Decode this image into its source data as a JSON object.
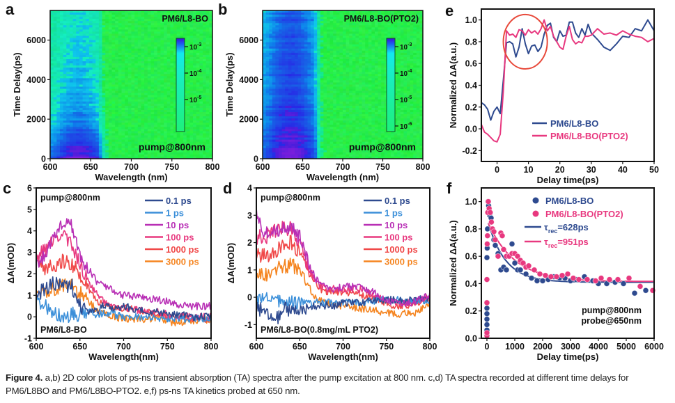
{
  "caption": {
    "label": "Figure 4.",
    "text": " a,b) 2D color plots of ps-ns transient absorption (TA) spectra after the pump excitation at 800 nm. c,d) TA spectra recorded at different time delays for PM6/L8BO and PM6/L8BO-PTO2. e,f) ps-ns TA kinetics probed at 650 nm."
  },
  "colors": {
    "blue": "#2e4a8f",
    "light_blue": "#3b8fd9",
    "purple": "#b82fb5",
    "pink": "#e8387f",
    "red": "#f04848",
    "orange": "#f5841f",
    "circle": "#e8493a"
  },
  "chart_data": [
    {
      "panel": "a",
      "type": "heatmap",
      "title": "PM6/L8-BO",
      "annotation": "pump@800nm",
      "xlabel": "Wavelength (nm)",
      "ylabel": "Time Delay(ps)",
      "xlim": [
        600,
        800
      ],
      "ylim": [
        0,
        7500
      ],
      "xticks": [
        "600",
        "650",
        "700",
        "750",
        "800"
      ],
      "yticks": [
        "0",
        "2000",
        "4000",
        "6000"
      ],
      "colorbar": {
        "ticks": [
          "10^-3",
          "10^-4",
          "10^-5"
        ]
      },
      "signal_region_nm": [
        600,
        660
      ]
    },
    {
      "panel": "b",
      "type": "heatmap",
      "title": "PM6/L8-BO(PTO2)",
      "annotation": "pump@800nm",
      "xlabel": "Wavelength (nm)",
      "ylabel": "Time Delay(ps)",
      "xlim": [
        600,
        800
      ],
      "ylim": [
        0,
        7500
      ],
      "xticks": [
        "600",
        "650",
        "700",
        "750",
        "800"
      ],
      "yticks": [
        "0",
        "2000",
        "4000",
        "6000"
      ],
      "colorbar": {
        "ticks": [
          "10^-3",
          "10^-4",
          "10^-5",
          "10^-6"
        ]
      },
      "signal_region_nm": [
        600,
        665
      ]
    },
    {
      "panel": "c",
      "type": "line",
      "annotation_top": "pump@800nm",
      "annotation_bottom": "PM6/L8-BO",
      "xlabel": "Wavelength(nm)",
      "ylabel": "ΔA(mOD)",
      "xlim": [
        600,
        800
      ],
      "ylim": [
        -1,
        6
      ],
      "xticks": [
        "600",
        "650",
        "700",
        "750",
        "800"
      ],
      "yticks": [
        "-1",
        "0",
        "1",
        "2",
        "3",
        "4",
        "5",
        "6"
      ],
      "x": [
        600,
        610,
        620,
        630,
        640,
        650,
        660,
        670,
        680,
        690,
        700,
        720,
        740,
        760,
        780,
        800
      ],
      "series": [
        {
          "name": "0.1 ps",
          "color": "blue",
          "values": [
            1.0,
            1.3,
            1.6,
            1.4,
            1.5,
            0.5,
            0.2,
            0.3,
            0.6,
            0.4,
            0.5,
            0.3,
            0.2,
            0.1,
            0.0,
            0.0
          ]
        },
        {
          "name": "1 ps",
          "color": "light_blue",
          "values": [
            0.8,
            0.5,
            0.2,
            0.0,
            0.1,
            0.1,
            0.2,
            0.1,
            0.2,
            0.1,
            0.0,
            0.0,
            -0.1,
            -0.1,
            -0.1,
            -0.1
          ]
        },
        {
          "name": "10 ps",
          "color": "purple",
          "values": [
            2.4,
            2.8,
            3.8,
            4.4,
            4.3,
            2.8,
            2.2,
            1.6,
            1.4,
            1.2,
            1.0,
            0.9,
            0.8,
            0.6,
            0.5,
            0.5
          ]
        },
        {
          "name": "100 ps",
          "color": "pink",
          "values": [
            2.8,
            3.1,
            3.6,
            3.8,
            3.5,
            2.4,
            1.6,
            1.0,
            0.7,
            0.5,
            0.4,
            0.3,
            0.2,
            0.0,
            0.0,
            0.0
          ]
        },
        {
          "name": "1000 ps",
          "color": "red",
          "values": [
            2.8,
            2.3,
            2.4,
            2.6,
            2.5,
            2.0,
            1.3,
            0.7,
            0.5,
            0.4,
            0.4,
            0.3,
            0.1,
            0.0,
            -0.1,
            -0.1
          ]
        },
        {
          "name": "3000 ps",
          "color": "orange",
          "values": [
            1.1,
            1.2,
            1.3,
            1.5,
            1.5,
            1.1,
            0.7,
            0.3,
            0.1,
            0.0,
            -0.1,
            -0.1,
            -0.1,
            -0.3,
            -0.2,
            -0.1
          ]
        }
      ]
    },
    {
      "panel": "d",
      "type": "line",
      "annotation_top": "pump@800nm",
      "annotation_bottom": "PM6/L8-BO(0.8mg/mL PTO2)",
      "xlabel": "Wavelength(nm)",
      "ylabel": "ΔA(mOD)",
      "xlim": [
        600,
        800
      ],
      "ylim": [
        -1.5,
        4
      ],
      "xticks": [
        "600",
        "650",
        "700",
        "750",
        "800"
      ],
      "yticks": [
        "-1",
        "0",
        "1",
        "2",
        "3",
        "4"
      ],
      "x": [
        600,
        610,
        620,
        630,
        640,
        650,
        660,
        670,
        680,
        690,
        700,
        720,
        740,
        760,
        780,
        800
      ],
      "series": [
        {
          "name": "0.1 ps",
          "color": "blue",
          "values": [
            -0.3,
            -0.6,
            -0.9,
            -0.5,
            -0.4,
            -0.4,
            -0.4,
            -0.3,
            -0.3,
            -0.3,
            -0.2,
            -0.2,
            -0.1,
            -0.1,
            -0.1,
            0.0
          ]
        },
        {
          "name": "1 ps",
          "color": "light_blue",
          "values": [
            -0.2,
            0.0,
            -0.1,
            -0.2,
            -0.2,
            -0.2,
            -0.2,
            -0.2,
            -0.2,
            -0.2,
            -0.2,
            -0.2,
            -0.1,
            -0.1,
            -0.1,
            -0.1
          ]
        },
        {
          "name": "10 ps",
          "color": "purple",
          "values": [
            3.0,
            2.3,
            2.4,
            2.5,
            2.6,
            2.2,
            1.2,
            0.6,
            0.4,
            0.3,
            0.4,
            0.4,
            0.1,
            -0.2,
            -0.2,
            0.1
          ]
        },
        {
          "name": "100 ps",
          "color": "pink",
          "values": [
            2.2,
            2.2,
            2.4,
            2.5,
            2.5,
            2.0,
            1.1,
            0.5,
            0.3,
            0.3,
            0.3,
            0.3,
            0.0,
            -0.2,
            -0.2,
            0.0
          ]
        },
        {
          "name": "1000 ps",
          "color": "red",
          "values": [
            1.6,
            1.5,
            1.6,
            1.9,
            2.0,
            1.6,
            0.9,
            0.4,
            0.2,
            0.2,
            0.2,
            0.1,
            -0.1,
            -0.3,
            -0.3,
            0.0
          ]
        },
        {
          "name": "3000 ps",
          "color": "orange",
          "values": [
            0.9,
            0.8,
            1.0,
            1.1,
            1.2,
            0.9,
            0.4,
            -0.1,
            -0.2,
            -0.3,
            -0.3,
            -0.4,
            -0.5,
            -0.6,
            -0.6,
            -0.3
          ]
        }
      ]
    },
    {
      "panel": "e",
      "type": "line",
      "xlabel": "Delay time(ps)",
      "ylabel": "Normalized ΔA(a.u.)",
      "xlim": [
        -5,
        50
      ],
      "ylim": [
        -0.3,
        1.1
      ],
      "xticks": [
        "0",
        "10",
        "20",
        "30",
        "40",
        "50"
      ],
      "yticks": [
        "-0.2",
        "0.0",
        "0.2",
        "0.4",
        "0.6",
        "0.8",
        "1.0"
      ],
      "highlight_circle": {
        "x_range": [
          2,
          16
        ],
        "y_range": [
          0.55,
          1.05
        ]
      },
      "x": [
        -5,
        -4,
        -3,
        -2,
        -1,
        0,
        1,
        2,
        3,
        4,
        5,
        6,
        7,
        8,
        9,
        10,
        11,
        12,
        13,
        14,
        15,
        16,
        17,
        18,
        19,
        20,
        21,
        22,
        23,
        24,
        25,
        26,
        27,
        28,
        29,
        30,
        32,
        34,
        36,
        38,
        40,
        42,
        44,
        46,
        48,
        50
      ],
      "series": [
        {
          "name": "PM6/L8-BO",
          "color": "blue",
          "values": [
            0.24,
            0.22,
            0.18,
            0.08,
            0.16,
            0.2,
            0.14,
            0.45,
            0.79,
            0.8,
            0.78,
            0.66,
            0.75,
            0.92,
            0.78,
            0.69,
            0.76,
            0.77,
            0.71,
            0.75,
            0.87,
            0.95,
            0.97,
            0.84,
            0.8,
            0.9,
            0.85,
            0.86,
            0.98,
            0.98,
            0.88,
            0.84,
            0.92,
            0.86,
            0.96,
            0.88,
            0.82,
            0.75,
            0.72,
            0.78,
            0.85,
            0.84,
            0.92,
            0.9,
            1.0,
            0.9
          ]
        },
        {
          "name": "PM6/L8-BO(PTO2)",
          "color": "pink",
          "values": [
            0.04,
            -0.03,
            -0.05,
            -0.08,
            -0.11,
            -0.12,
            -0.05,
            0.35,
            0.9,
            0.86,
            0.87,
            0.84,
            0.91,
            0.9,
            0.86,
            0.91,
            0.88,
            0.9,
            0.87,
            0.92,
            1.0,
            0.9,
            0.94,
            0.85,
            0.8,
            0.75,
            0.73,
            0.85,
            0.94,
            0.82,
            0.78,
            0.8,
            0.79,
            0.85,
            0.85,
            0.86,
            0.92,
            0.87,
            0.88,
            0.86,
            0.9,
            0.87,
            0.85,
            0.84,
            0.8,
            0.83
          ]
        }
      ]
    },
    {
      "panel": "f",
      "type": "scatter",
      "xlabel": "Delay time(ps)",
      "ylabel": "Normalized ΔA(a.u.)",
      "xlim": [
        -200,
        6000
      ],
      "ylim": [
        0,
        1.1
      ],
      "xticks": [
        "0",
        "1000",
        "2000",
        "3000",
        "4000",
        "5000",
        "6000"
      ],
      "yticks": [
        "0.0",
        "0.2",
        "0.4",
        "0.6",
        "0.8",
        "1.0"
      ],
      "annotation": [
        "pump@800nm",
        "probe@650nm"
      ],
      "series": [
        {
          "name": "PM6/L8-BO",
          "color": "blue",
          "kind": "points",
          "x": [
            0,
            0,
            0,
            0,
            0,
            0,
            0,
            0,
            10,
            20,
            40,
            60,
            100,
            150,
            200,
            250,
            300,
            400,
            500,
            600,
            700,
            800,
            900,
            1000,
            1100,
            1200,
            1400,
            1600,
            1800,
            2000,
            2200,
            2400,
            2600,
            2800,
            3000,
            3200,
            3500,
            3800,
            4000,
            4300,
            4600,
            4900,
            5300,
            5700
          ],
          "y": [
            0.02,
            0.06,
            0.1,
            0.14,
            0.18,
            0.22,
            0.26,
            0.59,
            0.66,
            0.8,
            1.0,
            0.97,
            0.9,
            0.88,
            0.8,
            0.72,
            0.68,
            0.62,
            0.5,
            0.52,
            0.5,
            0.6,
            0.69,
            0.55,
            0.5,
            0.5,
            0.47,
            0.44,
            0.42,
            0.42,
            0.43,
            0.45,
            0.44,
            0.44,
            0.42,
            0.43,
            0.45,
            0.42,
            0.4,
            0.4,
            0.41,
            0.4,
            0.33,
            0.35
          ]
        },
        {
          "name": "PM6/L8-BO(PTO2)",
          "color": "pink",
          "kind": "points",
          "x": [
            0,
            0,
            0,
            0,
            10,
            20,
            30,
            50,
            80,
            120,
            160,
            200,
            250,
            300,
            400,
            500,
            550,
            600,
            700,
            800,
            900,
            1000,
            1100,
            1200,
            1300,
            1400,
            1500,
            1700,
            1900,
            2100,
            2300,
            2500,
            2700,
            2900,
            3100,
            3300,
            3600,
            3900,
            4100,
            4400,
            4700,
            5100,
            5500,
            5950
          ],
          "y": [
            0.02,
            0.04,
            0.26,
            0.43,
            0.69,
            0.75,
            0.92,
            1.0,
            0.95,
            0.92,
            0.85,
            0.8,
            0.78,
            0.72,
            0.6,
            0.77,
            0.75,
            0.65,
            0.6,
            0.6,
            0.62,
            0.62,
            0.6,
            0.57,
            0.55,
            0.52,
            0.53,
            0.5,
            0.47,
            0.46,
            0.45,
            0.45,
            0.46,
            0.47,
            0.44,
            0.43,
            0.43,
            0.42,
            0.44,
            0.43,
            0.43,
            0.44,
            0.38,
            0.35
          ]
        },
        {
          "name": "τrec=628ps",
          "label_main": "τ",
          "label_sub": "rec",
          "label_val": "=628ps",
          "color": "blue",
          "kind": "fit",
          "tau": 628,
          "amp": 0.47,
          "offset": 0.41
        },
        {
          "name": "τrec=951ps",
          "label_main": "τ",
          "label_sub": "rec",
          "label_val": "=951ps",
          "color": "pink",
          "kind": "fit",
          "tau": 951,
          "amp": 0.45,
          "offset": 0.415
        }
      ]
    }
  ]
}
